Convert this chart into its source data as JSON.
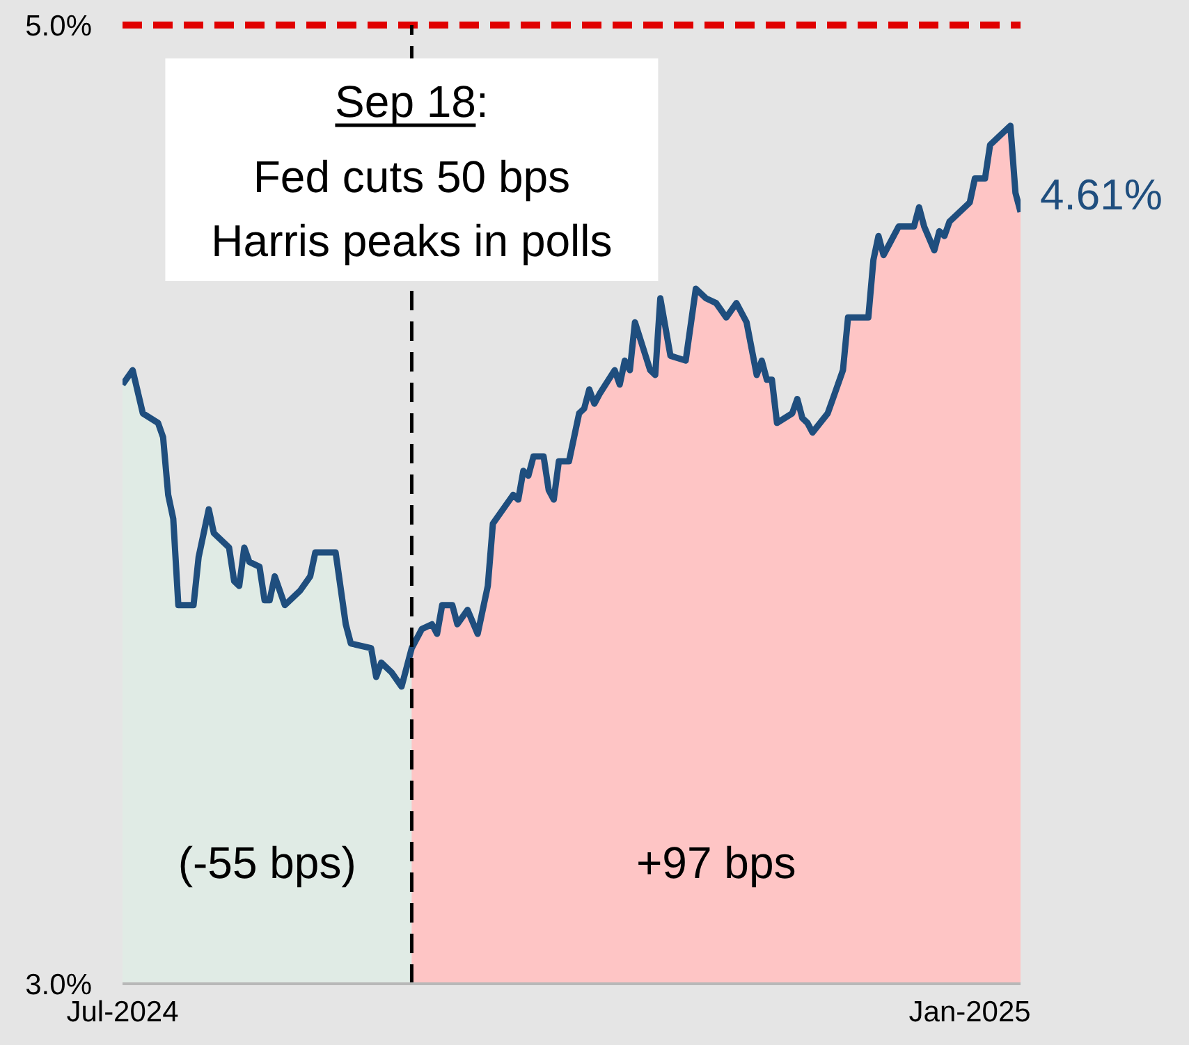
{
  "chart_data": {
    "type": "line",
    "x": [
      "2024-07-23",
      "2024-07-25",
      "2024-07-27",
      "2024-07-30",
      "2024-07-31",
      "2024-08-01",
      "2024-08-02",
      "2024-08-03",
      "2024-08-06",
      "2024-08-07",
      "2024-08-09",
      "2024-08-10",
      "2024-08-13",
      "2024-08-14",
      "2024-08-15",
      "2024-08-16",
      "2024-08-17",
      "2024-08-19",
      "2024-08-20",
      "2024-08-21",
      "2024-08-22",
      "2024-08-24",
      "2024-08-27",
      "2024-08-29",
      "2024-08-30",
      "2024-09-03",
      "2024-09-05",
      "2024-09-06",
      "2024-09-10",
      "2024-09-11",
      "2024-09-12",
      "2024-09-14",
      "2024-09-16",
      "2024-09-18",
      "2024-09-19",
      "2024-09-20",
      "2024-09-22",
      "2024-09-23",
      "2024-09-24",
      "2024-09-26",
      "2024-09-27",
      "2024-09-29",
      "2024-10-01",
      "2024-10-03",
      "2024-10-04",
      "2024-10-08",
      "2024-10-09",
      "2024-10-10",
      "2024-10-11",
      "2024-10-12",
      "2024-10-14",
      "2024-10-15",
      "2024-10-16",
      "2024-10-17",
      "2024-10-19",
      "2024-10-21",
      "2024-10-22",
      "2024-10-23",
      "2024-10-24",
      "2024-10-25",
      "2024-10-28",
      "2024-10-29",
      "2024-10-30",
      "2024-10-31",
      "2024-11-01",
      "2024-11-04",
      "2024-11-05",
      "2024-11-06",
      "2024-11-08",
      "2024-11-11",
      "2024-11-13",
      "2024-11-15",
      "2024-11-17",
      "2024-11-19",
      "2024-11-21",
      "2024-11-23",
      "2024-11-25",
      "2024-11-26",
      "2024-11-27",
      "2024-11-28",
      "2024-11-29",
      "2024-12-02",
      "2024-12-03",
      "2024-12-04",
      "2024-12-05",
      "2024-12-06",
      "2024-12-09",
      "2024-12-10",
      "2024-12-12",
      "2024-12-13",
      "2024-12-17",
      "2024-12-18",
      "2024-12-19",
      "2024-12-20",
      "2024-12-23",
      "2024-12-26",
      "2024-12-27",
      "2024-12-28",
      "2024-12-30",
      "2024-12-31",
      "2025-01-01",
      "2025-01-02",
      "2025-01-06",
      "2025-01-07",
      "2025-01-09",
      "2025-01-10",
      "2025-01-12",
      "2025-01-14",
      "2025-01-15",
      "2025-01-16"
    ],
    "series": [
      {
        "color": "#1f4e7e",
        "values": [
          4.25,
          4.28,
          4.19,
          4.17,
          4.14,
          4.02,
          3.97,
          3.79,
          3.79,
          3.89,
          3.99,
          3.94,
          3.91,
          3.84,
          3.83,
          3.91,
          3.88,
          3.87,
          3.8,
          3.8,
          3.85,
          3.79,
          3.82,
          3.85,
          3.9,
          3.9,
          3.75,
          3.71,
          3.7,
          3.64,
          3.67,
          3.65,
          3.62,
          3.7,
          3.72,
          3.74,
          3.75,
          3.73,
          3.79,
          3.79,
          3.75,
          3.78,
          3.73,
          3.83,
          3.96,
          4.02,
          4.01,
          4.07,
          4.06,
          4.1,
          4.1,
          4.03,
          4.01,
          4.09,
          4.09,
          4.19,
          4.2,
          4.24,
          4.21,
          4.23,
          4.28,
          4.25,
          4.3,
          4.28,
          4.38,
          4.28,
          4.27,
          4.43,
          4.31,
          4.3,
          4.45,
          4.43,
          4.42,
          4.39,
          4.42,
          4.38,
          4.27,
          4.3,
          4.26,
          4.26,
          4.17,
          4.19,
          4.22,
          4.18,
          4.17,
          4.15,
          4.19,
          4.22,
          4.28,
          4.39,
          4.39,
          4.51,
          4.56,
          4.52,
          4.58,
          4.58,
          4.62,
          4.58,
          4.53,
          4.57,
          4.56,
          4.59,
          4.63,
          4.68,
          4.68,
          4.75,
          4.77,
          4.79,
          4.65,
          4.61
        ]
      }
    ],
    "xlim": [
      "2024-07-23",
      "2025-01-16"
    ],
    "xticks": [
      {
        "value": "2024-07-23",
        "label": "Jul-2024"
      },
      {
        "value": "2025-01-06",
        "label": "Jan-2025"
      }
    ],
    "ylim": [
      3.0,
      5.0
    ],
    "yticks": [
      {
        "value": 3.0,
        "label": "3.0%"
      },
      {
        "value": 5.0,
        "label": "5.0%"
      }
    ],
    "ref_lines": [
      {
        "axis": "y",
        "value": 5.0,
        "color": "#e00000",
        "line_style": "dashed"
      },
      {
        "axis": "x",
        "value": "2024-09-18",
        "color": "#000000",
        "line_style": "dashed",
        "label": "Sep 18:"
      }
    ],
    "bands": [
      {
        "axis": "x",
        "from": "2024-07-23",
        "to": "2024-09-18",
        "label": "(-55 bps)",
        "color": "#e0ebe5"
      },
      {
        "axis": "x",
        "from": "2024-09-18",
        "to": "2025-01-16",
        "label": "+97 bps",
        "color": "#fec5c5"
      }
    ],
    "annotations": [
      "Fed cuts 50 bps",
      "Harris peaks in polls",
      {
        "text": "4.61%",
        "x": "2025-01-16",
        "y": 4.61
      }
    ],
    "grid": false,
    "legend": false
  }
}
